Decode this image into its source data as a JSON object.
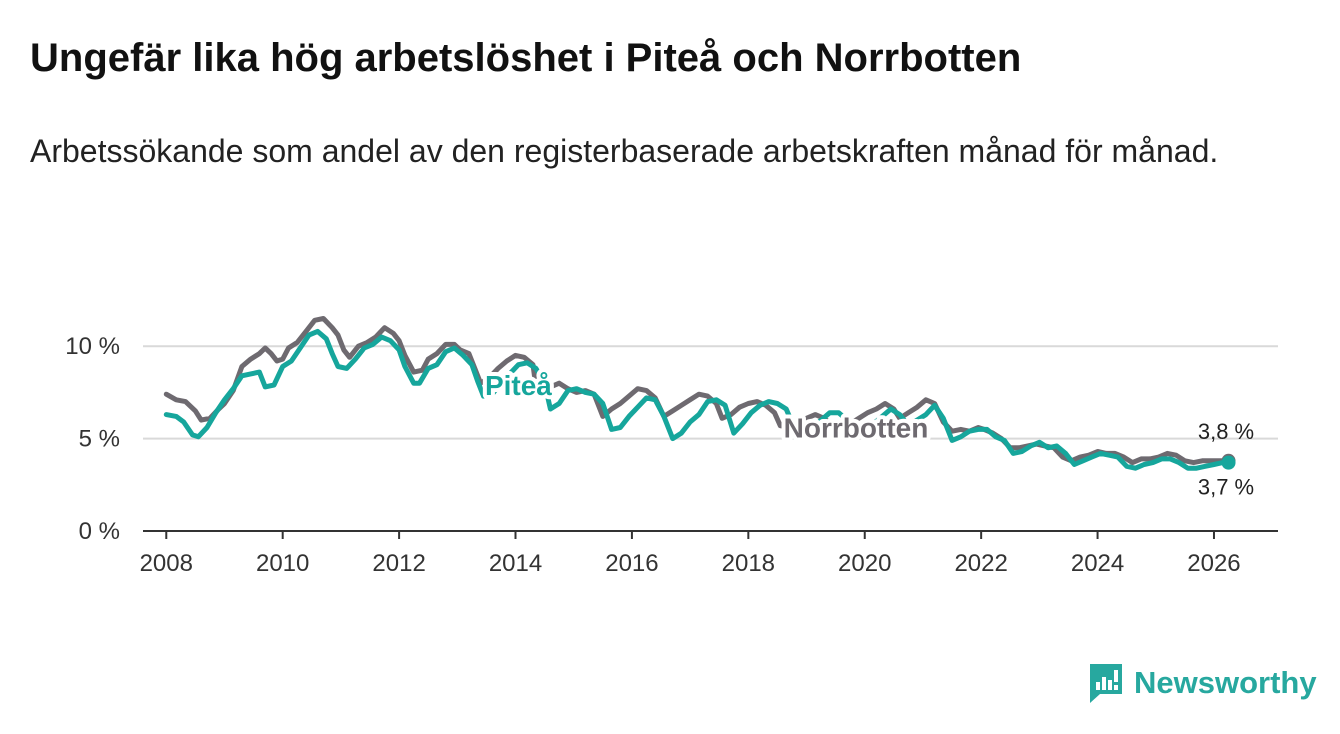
{
  "header": {
    "title": "Ungefär lika hög arbetslöshet i Piteå och Norrbotten",
    "subtitle": "Arbetssökande som andel av den registerbaserade arbetskraften månad för månad."
  },
  "brand": {
    "name": "Newsworthy",
    "icon": "newsworthy-logo-icon",
    "color": "#27a89f"
  },
  "chart_data": {
    "type": "line",
    "title": "Ungefär lika hög arbetslöshet i Piteå och Norrbotten",
    "xlabel": "",
    "ylabel": "",
    "xlim": [
      2007.6,
      2027.1
    ],
    "ylim": [
      0,
      12.5
    ],
    "y_ticks": [
      {
        "value": 0,
        "label": "0 %"
      },
      {
        "value": 5,
        "label": "5 %"
      },
      {
        "value": 10,
        "label": "10 %"
      }
    ],
    "x_ticks": [
      {
        "value": 2008,
        "label": "2008"
      },
      {
        "value": 2010,
        "label": "2010"
      },
      {
        "value": 2012,
        "label": "2012"
      },
      {
        "value": 2014,
        "label": "2014"
      },
      {
        "value": 2016,
        "label": "2016"
      },
      {
        "value": 2018,
        "label": "2018"
      },
      {
        "value": 2020,
        "label": "2020"
      },
      {
        "value": 2022,
        "label": "2022"
      },
      {
        "value": 2024,
        "label": "2024"
      },
      {
        "value": 2026,
        "label": "2026"
      }
    ],
    "grid": true,
    "series": [
      {
        "name": "Norrbotten",
        "color": "#6e6a70",
        "end_label": "3,8 %",
        "points": [
          [
            2008.0,
            7.4
          ],
          [
            2008.17,
            7.1
          ],
          [
            2008.33,
            7.0
          ],
          [
            2008.5,
            6.5
          ],
          [
            2008.6,
            6.0
          ],
          [
            2008.75,
            6.1
          ],
          [
            2008.9,
            6.6
          ],
          [
            2009.0,
            6.9
          ],
          [
            2009.15,
            7.6
          ],
          [
            2009.3,
            8.9
          ],
          [
            2009.45,
            9.3
          ],
          [
            2009.6,
            9.6
          ],
          [
            2009.7,
            9.9
          ],
          [
            2009.8,
            9.6
          ],
          [
            2009.9,
            9.2
          ],
          [
            2010.0,
            9.3
          ],
          [
            2010.1,
            9.9
          ],
          [
            2010.25,
            10.2
          ],
          [
            2010.4,
            10.8
          ],
          [
            2010.55,
            11.4
          ],
          [
            2010.7,
            11.5
          ],
          [
            2010.85,
            11.0
          ],
          [
            2010.95,
            10.6
          ],
          [
            2011.05,
            9.8
          ],
          [
            2011.15,
            9.4
          ],
          [
            2011.3,
            10.0
          ],
          [
            2011.45,
            10.2
          ],
          [
            2011.6,
            10.5
          ],
          [
            2011.75,
            11.0
          ],
          [
            2011.9,
            10.7
          ],
          [
            2012.0,
            10.3
          ],
          [
            2012.1,
            9.5
          ],
          [
            2012.25,
            8.6
          ],
          [
            2012.4,
            8.7
          ],
          [
            2012.5,
            9.3
          ],
          [
            2012.65,
            9.6
          ],
          [
            2012.8,
            10.1
          ],
          [
            2012.95,
            10.1
          ],
          [
            2013.05,
            9.8
          ],
          [
            2013.2,
            9.6
          ],
          [
            2013.3,
            8.8
          ],
          [
            2013.4,
            8.0
          ],
          [
            2013.55,
            8.3
          ],
          [
            2013.7,
            8.8
          ],
          [
            2013.85,
            9.2
          ],
          [
            2014.0,
            9.5
          ],
          [
            2014.15,
            9.4
          ],
          [
            2014.3,
            9.0
          ],
          [
            2014.35,
            7.8
          ],
          [
            2014.5,
            7.4
          ],
          [
            2014.6,
            7.8
          ],
          [
            2014.75,
            8.0
          ],
          [
            2014.9,
            7.7
          ],
          [
            2015.05,
            7.5
          ],
          [
            2015.2,
            7.6
          ],
          [
            2015.35,
            7.4
          ],
          [
            2015.5,
            6.2
          ],
          [
            2015.65,
            6.6
          ],
          [
            2015.8,
            6.9
          ],
          [
            2015.95,
            7.3
          ],
          [
            2016.1,
            7.7
          ],
          [
            2016.25,
            7.6
          ],
          [
            2016.4,
            7.2
          ],
          [
            2016.55,
            6.2
          ],
          [
            2016.7,
            6.5
          ],
          [
            2016.85,
            6.8
          ],
          [
            2017.0,
            7.1
          ],
          [
            2017.15,
            7.4
          ],
          [
            2017.3,
            7.3
          ],
          [
            2017.45,
            6.9
          ],
          [
            2017.55,
            6.1
          ],
          [
            2017.7,
            6.3
          ],
          [
            2017.85,
            6.7
          ],
          [
            2018.0,
            6.9
          ],
          [
            2018.15,
            7.0
          ],
          [
            2018.3,
            6.8
          ],
          [
            2018.45,
            6.4
          ],
          [
            2018.55,
            5.7
          ],
          [
            2018.7,
            5.6
          ],
          [
            2018.85,
            5.9
          ],
          [
            2019.0,
            6.1
          ],
          [
            2019.15,
            6.3
          ],
          [
            2019.3,
            6.1
          ],
          [
            2019.45,
            5.7
          ],
          [
            2019.6,
            5.5
          ],
          [
            2019.75,
            5.8
          ],
          [
            2019.9,
            6.1
          ],
          [
            2020.05,
            6.4
          ],
          [
            2020.2,
            6.6
          ],
          [
            2020.35,
            6.9
          ],
          [
            2020.5,
            6.6
          ],
          [
            2020.6,
            6.1
          ],
          [
            2020.75,
            6.4
          ],
          [
            2020.9,
            6.7
          ],
          [
            2021.05,
            7.1
          ],
          [
            2021.2,
            6.9
          ],
          [
            2021.35,
            5.9
          ],
          [
            2021.5,
            5.4
          ],
          [
            2021.65,
            5.5
          ],
          [
            2021.8,
            5.4
          ],
          [
            2021.95,
            5.6
          ],
          [
            2022.05,
            5.5
          ],
          [
            2022.2,
            5.3
          ],
          [
            2022.35,
            5.0
          ],
          [
            2022.5,
            4.5
          ],
          [
            2022.65,
            4.5
          ],
          [
            2022.8,
            4.6
          ],
          [
            2022.95,
            4.7
          ],
          [
            2023.1,
            4.6
          ],
          [
            2023.25,
            4.5
          ],
          [
            2023.4,
            4.0
          ],
          [
            2023.55,
            3.8
          ],
          [
            2023.7,
            4.0
          ],
          [
            2023.85,
            4.1
          ],
          [
            2024.0,
            4.3
          ],
          [
            2024.15,
            4.2
          ],
          [
            2024.3,
            4.2
          ],
          [
            2024.45,
            4.0
          ],
          [
            2024.6,
            3.7
          ],
          [
            2024.75,
            3.9
          ],
          [
            2024.9,
            3.9
          ],
          [
            2025.05,
            4.0
          ],
          [
            2025.2,
            4.2
          ],
          [
            2025.35,
            4.1
          ],
          [
            2025.5,
            3.8
          ],
          [
            2025.65,
            3.7
          ],
          [
            2025.8,
            3.8
          ],
          [
            2025.95,
            3.8
          ],
          [
            2026.1,
            3.8
          ],
          [
            2026.25,
            3.8
          ]
        ]
      },
      {
        "name": "Piteå",
        "color": "#16a69c",
        "end_label": "3,7 %",
        "points": [
          [
            2008.0,
            6.3
          ],
          [
            2008.17,
            6.2
          ],
          [
            2008.3,
            5.9
          ],
          [
            2008.45,
            5.2
          ],
          [
            2008.55,
            5.1
          ],
          [
            2008.7,
            5.6
          ],
          [
            2008.85,
            6.4
          ],
          [
            2009.0,
            7.1
          ],
          [
            2009.15,
            7.7
          ],
          [
            2009.3,
            8.4
          ],
          [
            2009.45,
            8.5
          ],
          [
            2009.6,
            8.6
          ],
          [
            2009.7,
            7.8
          ],
          [
            2009.85,
            7.9
          ],
          [
            2010.0,
            8.9
          ],
          [
            2010.15,
            9.2
          ],
          [
            2010.3,
            9.9
          ],
          [
            2010.45,
            10.6
          ],
          [
            2010.6,
            10.8
          ],
          [
            2010.75,
            10.4
          ],
          [
            2010.85,
            9.6
          ],
          [
            2010.95,
            8.9
          ],
          [
            2011.1,
            8.8
          ],
          [
            2011.25,
            9.3
          ],
          [
            2011.4,
            9.9
          ],
          [
            2011.55,
            10.1
          ],
          [
            2011.7,
            10.5
          ],
          [
            2011.85,
            10.3
          ],
          [
            2012.0,
            9.8
          ],
          [
            2012.1,
            8.9
          ],
          [
            2012.25,
            8.0
          ],
          [
            2012.35,
            8.0
          ],
          [
            2012.5,
            8.8
          ],
          [
            2012.65,
            9.0
          ],
          [
            2012.8,
            9.7
          ],
          [
            2012.95,
            9.9
          ],
          [
            2013.1,
            9.5
          ],
          [
            2013.25,
            9.0
          ],
          [
            2013.35,
            8.1
          ],
          [
            2013.45,
            7.3
          ],
          [
            2013.6,
            7.4
          ],
          [
            2013.75,
            8.0
          ],
          [
            2013.9,
            8.5
          ],
          [
            2014.05,
            9.0
          ],
          [
            2014.2,
            9.1
          ],
          [
            2014.35,
            8.8
          ],
          [
            2014.5,
            8.0
          ],
          [
            2014.6,
            6.6
          ],
          [
            2014.75,
            6.9
          ],
          [
            2014.9,
            7.6
          ],
          [
            2015.05,
            7.7
          ],
          [
            2015.2,
            7.5
          ],
          [
            2015.35,
            7.4
          ],
          [
            2015.5,
            6.9
          ],
          [
            2015.65,
            5.5
          ],
          [
            2015.8,
            5.6
          ],
          [
            2015.95,
            6.2
          ],
          [
            2016.1,
            6.7
          ],
          [
            2016.25,
            7.2
          ],
          [
            2016.4,
            7.1
          ],
          [
            2016.55,
            6.2
          ],
          [
            2016.7,
            5.0
          ],
          [
            2016.85,
            5.3
          ],
          [
            2017.0,
            5.9
          ],
          [
            2017.15,
            6.3
          ],
          [
            2017.3,
            7.0
          ],
          [
            2017.45,
            7.1
          ],
          [
            2017.6,
            6.8
          ],
          [
            2017.75,
            5.3
          ],
          [
            2017.9,
            5.8
          ],
          [
            2018.05,
            6.4
          ],
          [
            2018.2,
            6.8
          ],
          [
            2018.35,
            7.0
          ],
          [
            2018.5,
            6.9
          ],
          [
            2018.65,
            6.6
          ],
          [
            2018.8,
            5.5
          ],
          [
            2018.95,
            5.3
          ],
          [
            2019.1,
            5.6
          ],
          [
            2019.25,
            6.0
          ],
          [
            2019.4,
            6.4
          ],
          [
            2019.55,
            6.4
          ],
          [
            2019.7,
            6.0
          ],
          [
            2019.85,
            5.2
          ],
          [
            2020.0,
            5.3
          ],
          [
            2020.15,
            5.8
          ],
          [
            2020.3,
            6.2
          ],
          [
            2020.45,
            6.6
          ],
          [
            2020.6,
            6.3
          ],
          [
            2020.75,
            5.7
          ],
          [
            2020.9,
            6.0
          ],
          [
            2021.05,
            6.3
          ],
          [
            2021.2,
            6.8
          ],
          [
            2021.35,
            6.1
          ],
          [
            2021.5,
            4.9
          ],
          [
            2021.65,
            5.1
          ],
          [
            2021.8,
            5.4
          ],
          [
            2021.95,
            5.5
          ],
          [
            2022.1,
            5.5
          ],
          [
            2022.25,
            5.1
          ],
          [
            2022.4,
            4.9
          ],
          [
            2022.55,
            4.2
          ],
          [
            2022.7,
            4.3
          ],
          [
            2022.85,
            4.6
          ],
          [
            2023.0,
            4.8
          ],
          [
            2023.15,
            4.5
          ],
          [
            2023.3,
            4.6
          ],
          [
            2023.45,
            4.2
          ],
          [
            2023.6,
            3.6
          ],
          [
            2023.75,
            3.8
          ],
          [
            2023.9,
            4.0
          ],
          [
            2024.05,
            4.2
          ],
          [
            2024.2,
            4.1
          ],
          [
            2024.35,
            4.0
          ],
          [
            2024.5,
            3.5
          ],
          [
            2024.65,
            3.4
          ],
          [
            2024.8,
            3.6
          ],
          [
            2024.95,
            3.7
          ],
          [
            2025.1,
            3.9
          ],
          [
            2025.25,
            3.9
          ],
          [
            2025.4,
            3.7
          ],
          [
            2025.55,
            3.4
          ],
          [
            2025.7,
            3.4
          ],
          [
            2025.85,
            3.5
          ],
          [
            2026.0,
            3.6
          ],
          [
            2026.15,
            3.7
          ],
          [
            2026.25,
            3.7
          ]
        ]
      }
    ],
    "annotations": [
      {
        "text": "Piteå",
        "series": "Piteå",
        "at_x": 2014.05,
        "at_y": 7.9,
        "anchor": "middle"
      },
      {
        "text": "Norrbotten",
        "series": "Norrbotten",
        "at_x": 2019.85,
        "at_y": 5.6,
        "anchor": "middle"
      }
    ],
    "legend": "none"
  }
}
